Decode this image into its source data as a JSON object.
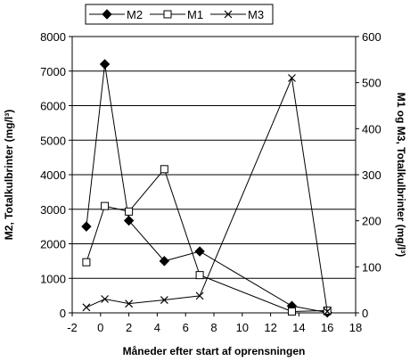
{
  "chart_data": {
    "type": "line",
    "title": "",
    "xlabel": "Måneder efter start af oprensningen",
    "ylabel_left": "M2, Totalkulbrinter (mg/l³)",
    "ylabel_right": "M1 og M3, Totalkulbrinter (mg/l³)",
    "xlim": [
      -2,
      18
    ],
    "ylim_left": [
      0,
      8000
    ],
    "ylim_right": [
      0,
      600
    ],
    "x_ticks": [
      -2,
      0,
      2,
      4,
      6,
      8,
      10,
      12,
      14,
      16,
      18
    ],
    "y_ticks_left": [
      0,
      1000,
      2000,
      3000,
      4000,
      5000,
      6000,
      7000,
      8000
    ],
    "y_ticks_right": [
      0,
      100,
      200,
      300,
      400,
      500,
      600
    ],
    "grid": "horizontal",
    "legend_position": "top",
    "series": [
      {
        "name": "M2",
        "axis": "left",
        "marker": "diamond",
        "x": [
          -1,
          0.3,
          2,
          4.5,
          7,
          13.5,
          16
        ],
        "y": [
          2500,
          7200,
          2670,
          1500,
          1780,
          200,
          10
        ]
      },
      {
        "name": "M1",
        "axis": "right",
        "marker": "square",
        "x": [
          -1,
          0.3,
          2,
          4.5,
          7,
          13.5,
          16
        ],
        "y": [
          110,
          232,
          220,
          312,
          82,
          3,
          5
        ]
      },
      {
        "name": "M3",
        "axis": "right",
        "marker": "x",
        "x": [
          -1,
          0.3,
          2,
          4.5,
          7,
          13.5,
          16
        ],
        "y": [
          12,
          30,
          20,
          28,
          37,
          510,
          3
        ]
      }
    ]
  }
}
